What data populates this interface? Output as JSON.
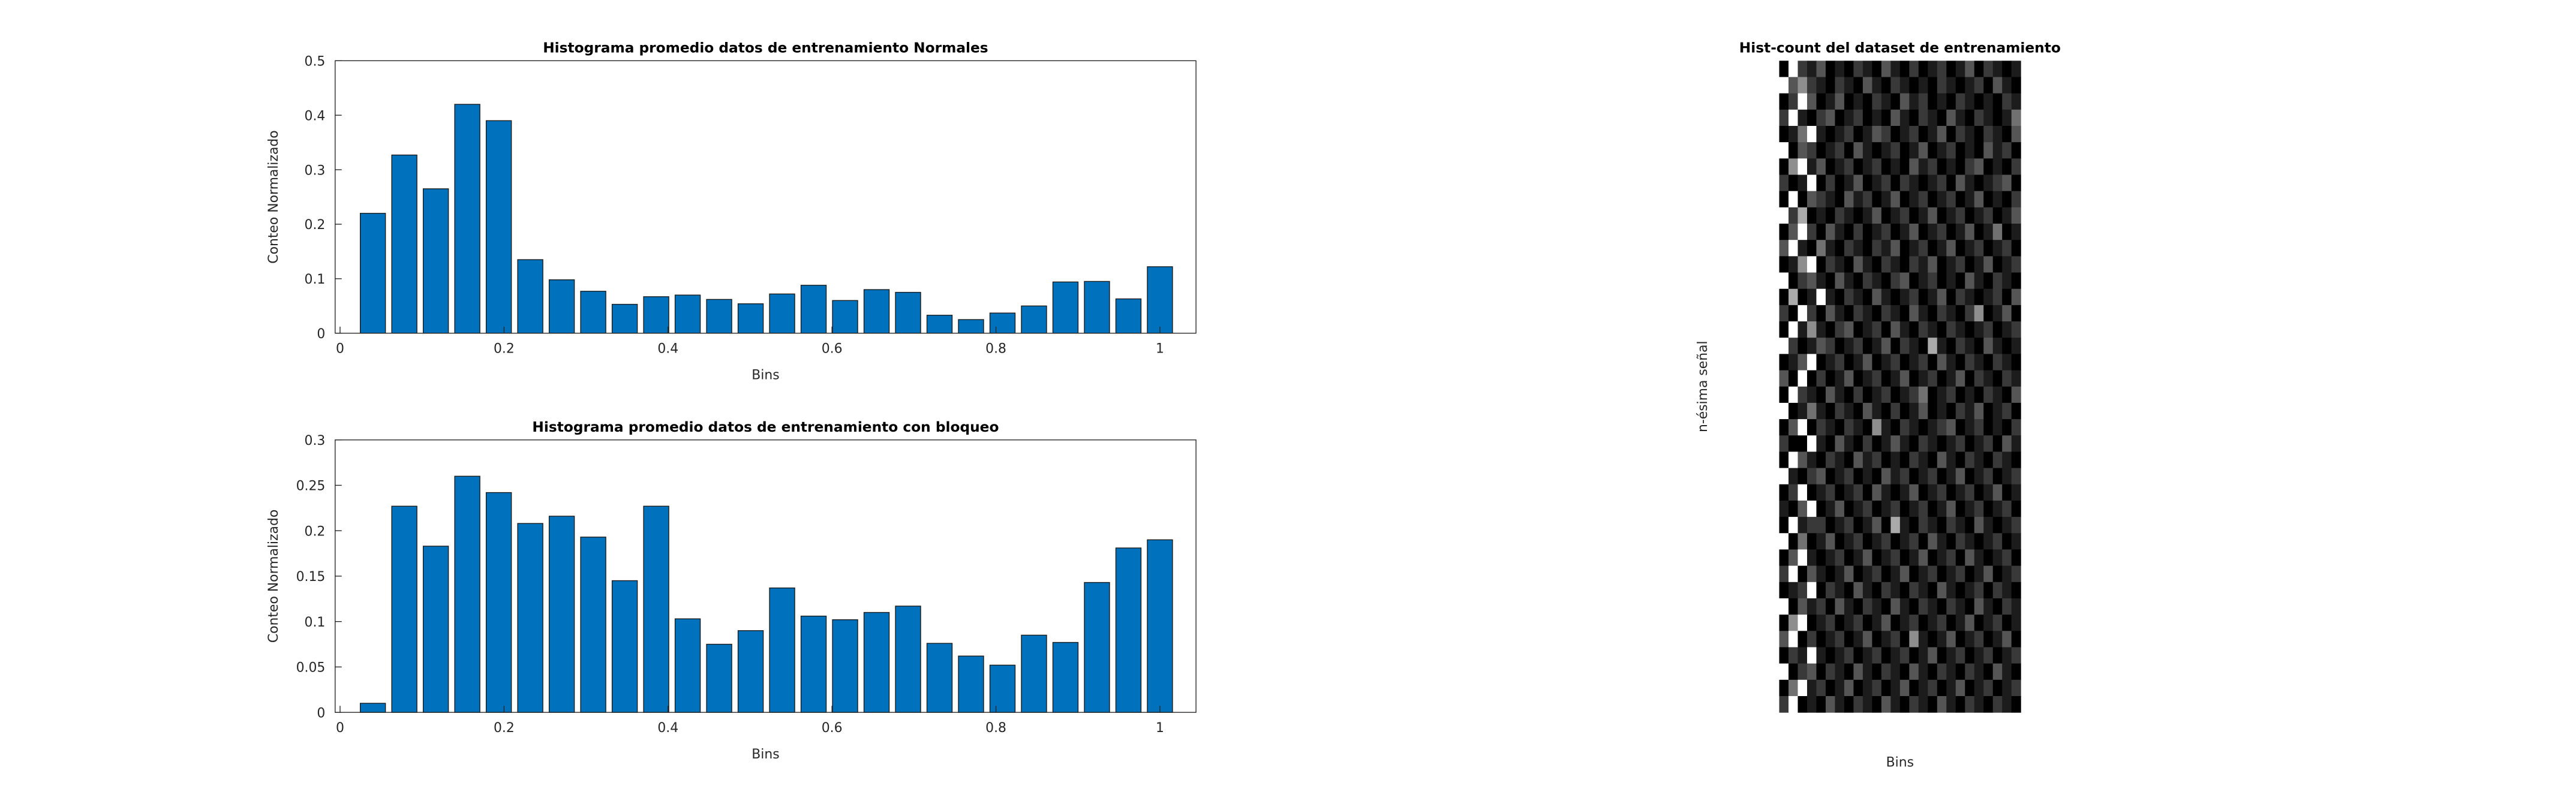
{
  "chart_data": [
    {
      "type": "bar",
      "title": "Histograma promedio datos de entrenamiento Normales",
      "xlabel": "Bins",
      "ylabel": "Conteo Normalizado",
      "x": [
        0.04,
        0.0784,
        0.1168,
        0.1552,
        0.1936,
        0.232,
        0.2704,
        0.3088,
        0.3472,
        0.3856,
        0.424,
        0.4624,
        0.5008,
        0.5392,
        0.5776,
        0.616,
        0.6544,
        0.6928,
        0.7312,
        0.7696,
        0.808,
        0.8464,
        0.8848,
        0.9232,
        0.9616,
        1.0
      ],
      "values": [
        0.22,
        0.327,
        0.265,
        0.42,
        0.39,
        0.135,
        0.098,
        0.077,
        0.053,
        0.067,
        0.07,
        0.062,
        0.054,
        0.072,
        0.088,
        0.06,
        0.08,
        0.075,
        0.033,
        0.025,
        0.037,
        0.05,
        0.094,
        0.095,
        0.063,
        0.122
      ],
      "color": "#0072bd",
      "xlim": [
        -0.006,
        1.044
      ],
      "ylim": [
        0,
        0.5
      ],
      "xticks": [
        0,
        0.2,
        0.4,
        0.6,
        0.8,
        1
      ],
      "yticks": [
        0,
        0.1,
        0.2,
        0.3,
        0.4,
        0.5
      ]
    },
    {
      "type": "bar",
      "title": "Histograma promedio datos de entrenamiento con bloqueo",
      "xlabel": "Bins",
      "ylabel": "Conteo Normalizado",
      "x": [
        0.04,
        0.0784,
        0.1168,
        0.1552,
        0.1936,
        0.232,
        0.2704,
        0.3088,
        0.3472,
        0.3856,
        0.424,
        0.4624,
        0.5008,
        0.5392,
        0.5776,
        0.616,
        0.6544,
        0.6928,
        0.7312,
        0.7696,
        0.808,
        0.8464,
        0.8848,
        0.9232,
        0.9616,
        1.0
      ],
      "values": [
        0.01,
        0.227,
        0.183,
        0.26,
        0.242,
        0.208,
        0.216,
        0.193,
        0.145,
        0.227,
        0.103,
        0.075,
        0.09,
        0.137,
        0.106,
        0.102,
        0.11,
        0.117,
        0.076,
        0.062,
        0.052,
        0.085,
        0.077,
        0.143,
        0.181,
        0.19
      ],
      "color": "#0072bd",
      "xlim": [
        -0.006,
        1.044
      ],
      "ylim": [
        0,
        0.3
      ],
      "xticks": [
        0,
        0.2,
        0.4,
        0.6,
        0.8,
        1
      ],
      "yticks": [
        0,
        0.05,
        0.1,
        0.15,
        0.2,
        0.25,
        0.3
      ]
    },
    {
      "type": "heatmap",
      "title": "Hist-count del dataset de entrenamiento",
      "xlabel": "Bins",
      "ylabel": "n-ésima señal",
      "clim": [
        0,
        9
      ],
      "values": [
        [
          0,
          9,
          2,
          1,
          3,
          0,
          1,
          0,
          2,
          1,
          0,
          3,
          1,
          0,
          2,
          0,
          1,
          2,
          0,
          1,
          3,
          0,
          2,
          1,
          0,
          1
        ],
        [
          9,
          3,
          5,
          2,
          1,
          0,
          2,
          1,
          0,
          3,
          1,
          0,
          2,
          1,
          0,
          1,
          0,
          2,
          1,
          0,
          1,
          2,
          0,
          3,
          1,
          0
        ],
        [
          0,
          2,
          9,
          3,
          0,
          1,
          3,
          0,
          1,
          0,
          2,
          1,
          0,
          3,
          1,
          2,
          0,
          1,
          0,
          2,
          1,
          0,
          1,
          0,
          2,
          1
        ],
        [
          2,
          9,
          1,
          0,
          2,
          3,
          0,
          1,
          2,
          0,
          1,
          0,
          3,
          1,
          0,
          2,
          1,
          0,
          3,
          1,
          0,
          2,
          1,
          0,
          1,
          4
        ],
        [
          0,
          1,
          4,
          9,
          1,
          0,
          1,
          2,
          0,
          1,
          3,
          2,
          0,
          1,
          2,
          0,
          1,
          3,
          0,
          2,
          1,
          0,
          2,
          1,
          0,
          3
        ],
        [
          9,
          0,
          3,
          2,
          0,
          1,
          2,
          0,
          3,
          1,
          0,
          1,
          2,
          0,
          1,
          3,
          0,
          1,
          2,
          0,
          1,
          0,
          3,
          1,
          2,
          0
        ],
        [
          0,
          5,
          9,
          1,
          3,
          0,
          1,
          2,
          0,
          1,
          2,
          0,
          1,
          0,
          3,
          1,
          2,
          0,
          1,
          0,
          2,
          3,
          0,
          1,
          0,
          2
        ],
        [
          2,
          0,
          1,
          9,
          0,
          2,
          0,
          1,
          3,
          0,
          1,
          2,
          0,
          2,
          1,
          0,
          1,
          2,
          0,
          3,
          1,
          0,
          1,
          2,
          3,
          0
        ],
        [
          0,
          9,
          0,
          3,
          2,
          1,
          0,
          3,
          1,
          2,
          0,
          1,
          3,
          0,
          1,
          2,
          0,
          1,
          2,
          0,
          1,
          3,
          0,
          1,
          0,
          2
        ],
        [
          9,
          2,
          6,
          0,
          1,
          0,
          2,
          1,
          0,
          1,
          3,
          0,
          1,
          2,
          0,
          1,
          3,
          0,
          1,
          2,
          0,
          1,
          2,
          0,
          1,
          3
        ],
        [
          0,
          3,
          9,
          2,
          0,
          3,
          1,
          0,
          2,
          0,
          1,
          2,
          0,
          1,
          3,
          0,
          1,
          2,
          0,
          1,
          3,
          0,
          1,
          4,
          0,
          1
        ],
        [
          3,
          9,
          1,
          0,
          4,
          1,
          0,
          2,
          1,
          0,
          2,
          1,
          3,
          0,
          1,
          2,
          0,
          1,
          3,
          0,
          1,
          2,
          0,
          1,
          2,
          0
        ],
        [
          0,
          1,
          5,
          9,
          0,
          2,
          1,
          0,
          3,
          1,
          0,
          2,
          1,
          0,
          2,
          1,
          3,
          0,
          1,
          2,
          0,
          1,
          3,
          0,
          1,
          2
        ],
        [
          9,
          0,
          2,
          3,
          1,
          0,
          3,
          1,
          0,
          2,
          1,
          0,
          2,
          3,
          0,
          1,
          2,
          0,
          1,
          0,
          3,
          1,
          0,
          2,
          1,
          0
        ],
        [
          0,
          6,
          0,
          1,
          9,
          1,
          0,
          2,
          1,
          0,
          3,
          1,
          0,
          1,
          2,
          0,
          1,
          3,
          0,
          2,
          1,
          0,
          1,
          2,
          0,
          3
        ],
        [
          2,
          0,
          9,
          2,
          0,
          3,
          1,
          0,
          2,
          1,
          0,
          2,
          1,
          0,
          3,
          1,
          0,
          2,
          1,
          0,
          2,
          5,
          0,
          1,
          3,
          0
        ],
        [
          0,
          9,
          1,
          5,
          1,
          0,
          2,
          3,
          0,
          1,
          2,
          0,
          3,
          1,
          0,
          2,
          1,
          0,
          2,
          1,
          0,
          1,
          2,
          0,
          1,
          2
        ],
        [
          9,
          2,
          0,
          1,
          3,
          2,
          0,
          1,
          2,
          0,
          1,
          3,
          0,
          2,
          1,
          0,
          6,
          1,
          0,
          2,
          1,
          0,
          3,
          1,
          0,
          1
        ],
        [
          0,
          1,
          3,
          9,
          0,
          1,
          2,
          0,
          1,
          3,
          0,
          1,
          2,
          0,
          1,
          2,
          0,
          3,
          1,
          0,
          2,
          1,
          0,
          2,
          1,
          0
        ],
        [
          3,
          0,
          9,
          0,
          2,
          0,
          1,
          3,
          0,
          1,
          2,
          0,
          1,
          3,
          0,
          1,
          2,
          0,
          1,
          3,
          0,
          2,
          1,
          0,
          2,
          1
        ],
        [
          0,
          9,
          2,
          1,
          0,
          3,
          1,
          0,
          2,
          0,
          1,
          2,
          0,
          1,
          2,
          4,
          0,
          1,
          2,
          0,
          1,
          0,
          2,
          1,
          0,
          3
        ],
        [
          9,
          0,
          1,
          4,
          1,
          0,
          2,
          1,
          0,
          3,
          1,
          0,
          2,
          0,
          1,
          3,
          0,
          1,
          0,
          2,
          1,
          3,
          0,
          1,
          2,
          0
        ],
        [
          0,
          3,
          9,
          0,
          2,
          1,
          0,
          2,
          1,
          0,
          5,
          1,
          0,
          2,
          1,
          0,
          1,
          2,
          3,
          0,
          1,
          2,
          0,
          1,
          0,
          2
        ],
        [
          2,
          0,
          0,
          9,
          1,
          0,
          3,
          1,
          0,
          2,
          0,
          1,
          3,
          1,
          0,
          2,
          1,
          0,
          1,
          2,
          0,
          1,
          2,
          0,
          3,
          1
        ],
        [
          0,
          9,
          3,
          1,
          0,
          2,
          1,
          0,
          3,
          1,
          2,
          0,
          1,
          0,
          2,
          1,
          0,
          3,
          1,
          0,
          2,
          1,
          0,
          2,
          1,
          0
        ],
        [
          9,
          1,
          0,
          2,
          3,
          0,
          1,
          2,
          0,
          1,
          0,
          3,
          1,
          2,
          0,
          1,
          2,
          0,
          1,
          3,
          0,
          1,
          2,
          0,
          1,
          2
        ],
        [
          0,
          2,
          9,
          0,
          1,
          2,
          0,
          1,
          2,
          0,
          3,
          1,
          0,
          1,
          3,
          0,
          1,
          2,
          0,
          1,
          2,
          0,
          1,
          3,
          0,
          1
        ],
        [
          1,
          0,
          3,
          9,
          0,
          1,
          3,
          0,
          1,
          2,
          0,
          1,
          2,
          0,
          1,
          2,
          0,
          1,
          3,
          0,
          1,
          2,
          0,
          1,
          2,
          0
        ],
        [
          0,
          9,
          1,
          2,
          2,
          0,
          1,
          2,
          0,
          1,
          3,
          0,
          6,
          1,
          0,
          2,
          1,
          0,
          2,
          1,
          0,
          3,
          1,
          0,
          1,
          2
        ],
        [
          9,
          0,
          4,
          0,
          1,
          3,
          0,
          1,
          2,
          0,
          1,
          2,
          0,
          1,
          2,
          0,
          3,
          1,
          0,
          2,
          1,
          0,
          1,
          2,
          0,
          1
        ],
        [
          0,
          3,
          9,
          1,
          0,
          1,
          2,
          0,
          1,
          3,
          0,
          1,
          2,
          0,
          1,
          3,
          0,
          1,
          2,
          0,
          3,
          1,
          0,
          1,
          2,
          0
        ],
        [
          2,
          9,
          0,
          3,
          1,
          0,
          1,
          3,
          0,
          1,
          2,
          0,
          1,
          3,
          0,
          1,
          2,
          0,
          1,
          2,
          0,
          1,
          3,
          0,
          1,
          2
        ],
        [
          0,
          1,
          2,
          9,
          0,
          2,
          1,
          0,
          3,
          1,
          0,
          2,
          1,
          0,
          2,
          1,
          0,
          3,
          1,
          0,
          1,
          2,
          0,
          2,
          1,
          0
        ],
        [
          9,
          0,
          3,
          1,
          2,
          0,
          3,
          1,
          0,
          2,
          1,
          0,
          3,
          1,
          0,
          2,
          1,
          0,
          2,
          1,
          0,
          3,
          1,
          0,
          2,
          1
        ],
        [
          0,
          5,
          9,
          0,
          1,
          2,
          0,
          1,
          2,
          0,
          1,
          3,
          0,
          1,
          2,
          0,
          1,
          2,
          0,
          1,
          3,
          0,
          1,
          2,
          0,
          1
        ],
        [
          3,
          9,
          0,
          2,
          0,
          1,
          2,
          0,
          1,
          3,
          0,
          1,
          2,
          0,
          5,
          1,
          0,
          1,
          3,
          0,
          1,
          2,
          0,
          1,
          3,
          0
        ],
        [
          0,
          2,
          1,
          9,
          1,
          0,
          1,
          2,
          0,
          1,
          2,
          0,
          1,
          2,
          0,
          1,
          3,
          0,
          1,
          2,
          0,
          1,
          2,
          0,
          1,
          2
        ],
        [
          9,
          0,
          2,
          3,
          0,
          2,
          1,
          0,
          3,
          1,
          0,
          2,
          1,
          0,
          3,
          1,
          0,
          2,
          1,
          0,
          2,
          1,
          0,
          3,
          1,
          0
        ],
        [
          0,
          4,
          9,
          1,
          2,
          0,
          1,
          3,
          0,
          1,
          2,
          0,
          1,
          3,
          0,
          1,
          2,
          0,
          1,
          3,
          0,
          1,
          2,
          0,
          1,
          2
        ],
        [
          2,
          9,
          0,
          1,
          0,
          3,
          1,
          0,
          2,
          1,
          0,
          3,
          1,
          0,
          2,
          1,
          0,
          3,
          1,
          0,
          2,
          1,
          0,
          2,
          1,
          0
        ]
      ]
    }
  ]
}
